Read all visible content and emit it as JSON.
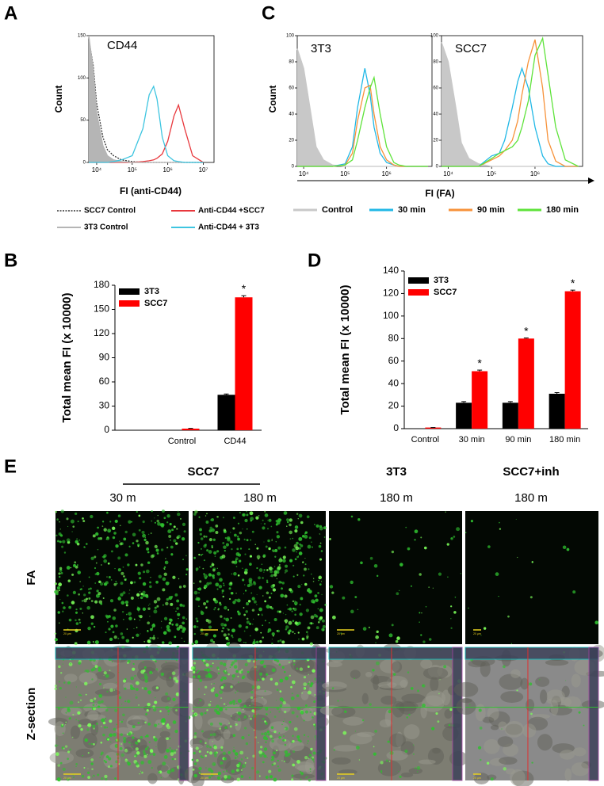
{
  "chart_data": [
    {
      "type": "line",
      "label": "A",
      "title": "CD44",
      "xlabel": "FI (anti-CD44)",
      "ylabel": "Count",
      "log_x": true,
      "xlim": [
        6000,
        20000000
      ],
      "xticks": [
        {
          "value": 10000,
          "label": "10⁴"
        },
        {
          "value": 100000,
          "label": "10⁵"
        },
        {
          "value": 1000000,
          "label": "10⁶"
        },
        {
          "value": 10000000,
          "label": "10⁷"
        }
      ],
      "ylim": [
        0,
        150
      ],
      "yticks": [
        0,
        50,
        100,
        150
      ],
      "x": [
        6000,
        8000,
        10000,
        15000,
        20000,
        30000,
        50000,
        100000,
        200000,
        300000,
        400000,
        500000,
        700000,
        1000000,
        1500000,
        2000000,
        3000000,
        5000000,
        10000000
      ],
      "series": [
        {
          "name": "SCC7 Control",
          "color": "#333333",
          "style": "dotted",
          "values": [
            145,
            115,
            70,
            30,
            15,
            8,
            3,
            1,
            0,
            0,
            0,
            0,
            0,
            0,
            0,
            0,
            0,
            0,
            0
          ]
        },
        {
          "name": "Anti-CD44 +SCC7",
          "color": "#e8383d",
          "style": "line",
          "values": [
            0,
            0,
            0,
            0,
            0,
            0,
            0,
            0,
            1,
            2,
            3,
            5,
            10,
            25,
            55,
            68,
            40,
            8,
            0
          ]
        },
        {
          "name": "3T3 Control",
          "color": "#b5b5b5",
          "style": "area",
          "values": [
            150,
            110,
            60,
            20,
            8,
            3,
            1,
            0,
            0,
            0,
            0,
            0,
            0,
            0,
            0,
            0,
            0,
            0,
            0
          ]
        },
        {
          "name": "Anti-CD44 + 3T3",
          "color": "#3ec5e0",
          "style": "line",
          "values": [
            0,
            0,
            0,
            0,
            0,
            1,
            3,
            8,
            40,
            80,
            90,
            75,
            30,
            8,
            2,
            1,
            0,
            0,
            0
          ]
        }
      ]
    },
    {
      "type": "line",
      "label": "C",
      "xlabel": "FI (FA)",
      "ylabel": "Count",
      "log_x": true,
      "xlim": [
        7000,
        12500000
      ],
      "xticks": [
        {
          "value": 10000,
          "label": "10⁴"
        },
        {
          "value": 100000,
          "label": "10⁵"
        },
        {
          "value": 1000000,
          "label": "10⁶"
        }
      ],
      "ylim": [
        0,
        100
      ],
      "yticks": [
        0,
        20,
        40,
        60,
        80,
        100
      ],
      "x": [
        7000,
        10000,
        15000,
        20000,
        30000,
        50000,
        100000,
        150000,
        200000,
        300000,
        400000,
        500000,
        700000,
        1000000,
        1500000,
        2000000,
        3000000,
        5000000,
        10000000
      ],
      "legend": [
        {
          "name": "Control",
          "color": "#c8c8c8",
          "style": "area"
        },
        {
          "name": "30 min",
          "color": "#21b8e6",
          "style": "line"
        },
        {
          "name": "90 min",
          "color": "#f7923a",
          "style": "line"
        },
        {
          "name": "180 min",
          "color": "#5ee33a",
          "style": "line"
        }
      ],
      "panels": [
        {
          "title": "3T3",
          "series": [
            {
              "values": [
                90,
                75,
                40,
                15,
                5,
                1,
                0,
                0,
                0,
                0,
                0,
                0,
                0,
                0,
                0,
                0,
                0,
                0,
                0
              ]
            },
            {
              "values": [
                0,
                0,
                0,
                0,
                0,
                0,
                2,
                15,
                45,
                75,
                55,
                30,
                10,
                3,
                1,
                0,
                0,
                0,
                0
              ]
            },
            {
              "values": [
                0,
                0,
                0,
                0,
                0,
                0,
                1,
                10,
                35,
                60,
                62,
                40,
                15,
                5,
                1,
                0,
                0,
                0,
                0
              ]
            },
            {
              "values": [
                0,
                0,
                0,
                0,
                0,
                0,
                1,
                5,
                20,
                45,
                60,
                68,
                40,
                15,
                3,
                1,
                0,
                0,
                0
              ]
            }
          ]
        },
        {
          "title": "SCC7",
          "series": [
            {
              "values": [
                95,
                80,
                45,
                18,
                6,
                2,
                0,
                0,
                0,
                0,
                0,
                0,
                0,
                0,
                0,
                0,
                0,
                0,
                0
              ]
            },
            {
              "values": [
                0,
                0,
                0,
                0,
                0,
                0,
                8,
                10,
                20,
                45,
                65,
                75,
                60,
                30,
                8,
                2,
                0,
                0,
                0
              ]
            },
            {
              "values": [
                0,
                0,
                0,
                0,
                0,
                0,
                5,
                8,
                12,
                20,
                35,
                55,
                80,
                97,
                60,
                20,
                4,
                0,
                0
              ]
            },
            {
              "values": [
                0,
                0,
                0,
                0,
                0,
                0,
                6,
                10,
                12,
                15,
                20,
                30,
                50,
                85,
                98,
                70,
                30,
                5,
                0
              ]
            }
          ]
        }
      ]
    },
    {
      "type": "bar",
      "label": "B",
      "ylabel": "Total mean FI (x 10000)",
      "categories": [
        "Control",
        "CD44"
      ],
      "ylim": [
        0,
        180
      ],
      "yticks": [
        0,
        30,
        60,
        90,
        120,
        150,
        180
      ],
      "series": [
        {
          "name": "3T3",
          "color": "#000000",
          "values": [
            0,
            44
          ],
          "errors": [
            0,
            1
          ],
          "marks": [
            null,
            null
          ]
        },
        {
          "name": "SCC7",
          "color": "#ff0000",
          "values": [
            2,
            165
          ],
          "errors": [
            0.3,
            2
          ],
          "marks": [
            null,
            "*"
          ]
        }
      ]
    },
    {
      "type": "bar",
      "label": "D",
      "ylabel": "Total mean FI (x 10000)",
      "categories": [
        "Control",
        "30 min",
        "90 min",
        "180 min"
      ],
      "ylim": [
        0,
        140
      ],
      "yticks": [
        0,
        20,
        40,
        60,
        80,
        100,
        120,
        140
      ],
      "series": [
        {
          "name": "3T3",
          "color": "#000000",
          "values": [
            0,
            23,
            23,
            31
          ],
          "errors": [
            0,
            1,
            1,
            1
          ],
          "marks": [
            null,
            null,
            null,
            null
          ]
        },
        {
          "name": "SCC7",
          "color": "#ff0000",
          "values": [
            1,
            51,
            80,
            122
          ],
          "errors": [
            0,
            1,
            0.5,
            1
          ],
          "marks": [
            null,
            "*",
            "*",
            "*"
          ]
        }
      ]
    }
  ],
  "panel_e": {
    "label": "E",
    "groups": [
      {
        "name": "SCC7",
        "times": [
          "30 m",
          "180 m"
        ]
      },
      {
        "name": "3T3",
        "times": [
          "180 m"
        ]
      },
      {
        "name": "SCC7+inh",
        "times": [
          "180 m"
        ]
      }
    ],
    "rows": [
      "FA",
      "Z-section"
    ],
    "scale_bar": "20 µm"
  }
}
